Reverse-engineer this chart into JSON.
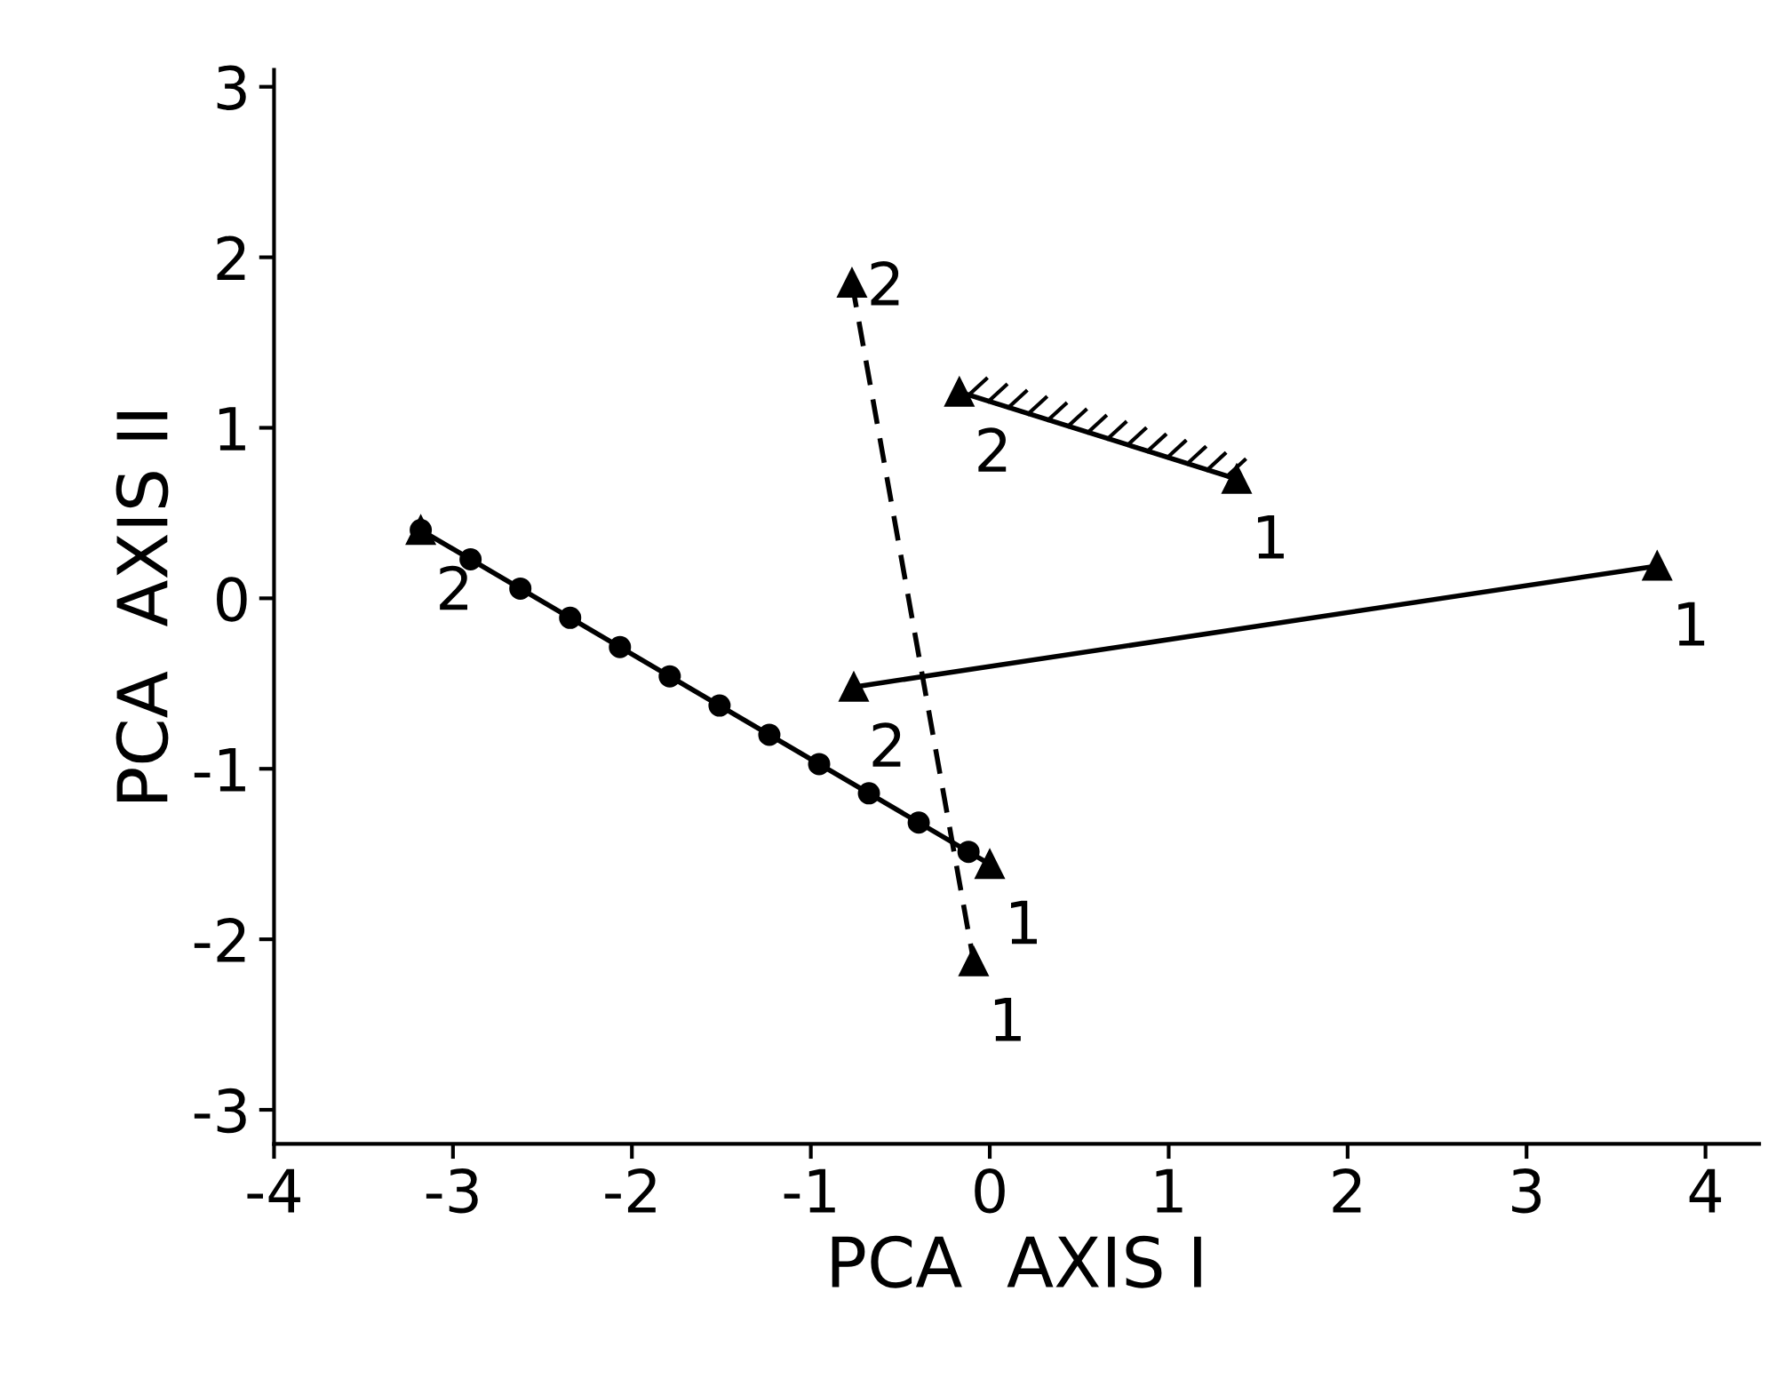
{
  "chart_data": {
    "type": "line",
    "xlabel": "PCA  AXIS I",
    "ylabel": "PCA  AXIS II",
    "xlim": [
      -4,
      4.3
    ],
    "ylim": [
      -3.2,
      3.1
    ],
    "xticks": [
      -4,
      -3,
      -2,
      -1,
      0,
      1,
      2,
      3,
      4
    ],
    "yticks": [
      -3,
      -2,
      -1,
      0,
      1,
      2,
      3
    ],
    "marker": "triangle",
    "grid": false,
    "legend": false,
    "series": [
      {
        "color": "#000000",
        "line_style": "solid",
        "x": [
          -3.18,
          0.0
        ],
        "values": [
          0.4,
          -1.56
        ]
      },
      {
        "color": "#000000",
        "line_style": "dashed",
        "x": [
          -0.77,
          -0.09
        ],
        "values": [
          1.85,
          -2.13
        ]
      },
      {
        "color": "#000000",
        "line_style": "solid",
        "x": [
          -0.17,
          1.38
        ],
        "values": [
          1.21,
          0.7
        ]
      },
      {
        "color": "#000000",
        "line_style": "solid",
        "x": [
          -0.76,
          3.73
        ],
        "values": [
          -0.52,
          0.19
        ]
      }
    ],
    "annotations": [
      {
        "text": "2",
        "x": -3.18,
        "y": 0.4
      },
      {
        "text": "1",
        "x": 0.0,
        "y": -1.56
      },
      {
        "text": "2",
        "x": -0.77,
        "y": 1.85
      },
      {
        "text": "1",
        "x": -0.09,
        "y": -2.13
      },
      {
        "text": "2",
        "x": -0.17,
        "y": 1.21
      },
      {
        "text": "1",
        "x": 1.38,
        "y": 0.7
      },
      {
        "text": "2",
        "x": -0.76,
        "y": -0.52
      },
      {
        "text": "1",
        "x": 3.73,
        "y": 0.19
      }
    ]
  }
}
